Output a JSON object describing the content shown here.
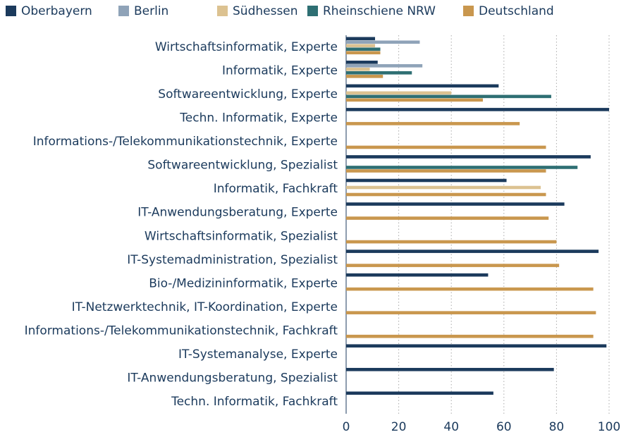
{
  "chart_data": {
    "type": "barh",
    "categories": [
      "Wirtschaftsinformatik, Experte",
      "Informatik, Experte",
      "Softwareentwicklung, Experte",
      "Techn. Informatik, Experte",
      "Informations-/Telekommunikationstechnik, Experte",
      "Softwareentwicklung, Spezialist",
      "Informatik, Fachkraft",
      "IT-Anwendungsberatung, Experte",
      "Wirtschaftsinformatik, Spezialist",
      "IT-Systemadministration, Spezialist",
      "Bio-/Medizininformatik, Experte",
      "IT-Netzwerktechnik, IT-Koordination, Experte",
      "Informations-/Telekommunikationstechnik, Fachkraft",
      "IT-Systemanalyse, Experte",
      "IT-Anwendungsberatung, Spezialist",
      "Techn. Informatik, Fachkraft"
    ],
    "series": [
      {
        "name": "Oberbayern",
        "color": "#1b3a5c",
        "values": [
          11,
          12,
          58,
          100,
          null,
          93,
          61,
          83,
          null,
          96,
          54,
          null,
          null,
          99,
          79,
          56
        ]
      },
      {
        "name": "Berlin",
        "color": "#8fa3b8",
        "values": [
          28,
          29,
          null,
          null,
          null,
          null,
          null,
          null,
          null,
          null,
          null,
          null,
          null,
          null,
          null,
          null
        ]
      },
      {
        "name": "Südhessen",
        "color": "#dcc291",
        "values": [
          11,
          9,
          40,
          null,
          null,
          null,
          74,
          null,
          null,
          null,
          null,
          null,
          null,
          null,
          null,
          null
        ]
      },
      {
        "name": "Rheinschiene NRW",
        "color": "#2e6f73",
        "values": [
          13,
          25,
          78,
          null,
          null,
          88,
          null,
          null,
          null,
          null,
          null,
          null,
          null,
          null,
          null,
          null
        ]
      },
      {
        "name": "Deutschland",
        "color": "#c9974e",
        "values": [
          13,
          14,
          52,
          66,
          76,
          76,
          76,
          77,
          80,
          81,
          94,
          95,
          94,
          null,
          null,
          null
        ]
      }
    ],
    "xlim": [
      0,
      100
    ],
    "xticks": [
      0,
      20,
      40,
      60,
      80,
      100
    ],
    "grid": true
  }
}
